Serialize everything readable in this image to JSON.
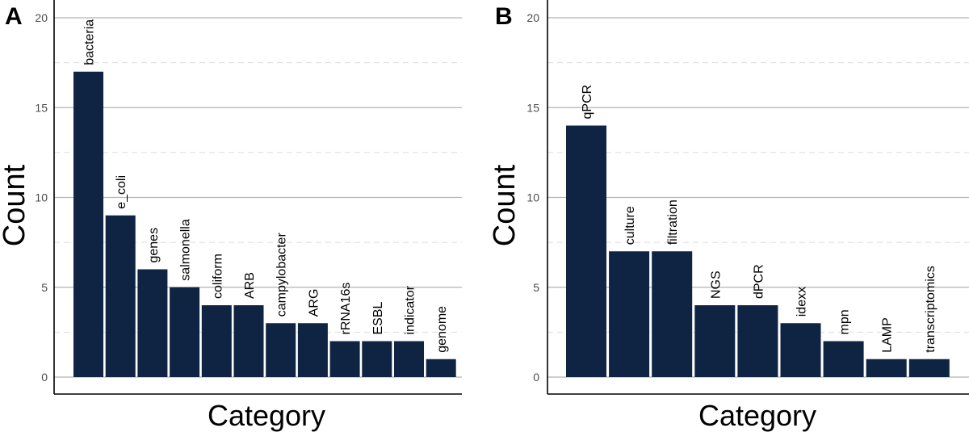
{
  "colors": {
    "bar": "#0f2442",
    "grid_major": "#b3b3b3",
    "grid_minor": "#dcdcdc"
  },
  "chart_data": [
    {
      "panel": "A",
      "type": "bar",
      "xlabel": "Category",
      "ylabel": "Count",
      "ylim": [
        0,
        20
      ],
      "yticks": [
        0,
        5,
        10,
        15,
        20
      ],
      "grid": true,
      "categories": [
        "bacteria",
        "e_coli",
        "genes",
        "salmonella",
        "coliform",
        "ARB",
        "campylobacter",
        "ARG",
        "rRNA16s",
        "ESBL",
        "indicator",
        "genome"
      ],
      "values": [
        17,
        9,
        6,
        5,
        4,
        4,
        3,
        3,
        2,
        2,
        2,
        1
      ]
    },
    {
      "panel": "B",
      "type": "bar",
      "xlabel": "Category",
      "ylabel": "Count",
      "ylim": [
        0,
        20
      ],
      "yticks": [
        0,
        5,
        10,
        15,
        20
      ],
      "grid": true,
      "categories": [
        "qPCR",
        "culture",
        "filtration",
        "NGS",
        "dPCR",
        "idexx",
        "mpn",
        "LAMP",
        "transcriptomics"
      ],
      "values": [
        14,
        7,
        7,
        4,
        4,
        3,
        2,
        1,
        1
      ]
    }
  ]
}
